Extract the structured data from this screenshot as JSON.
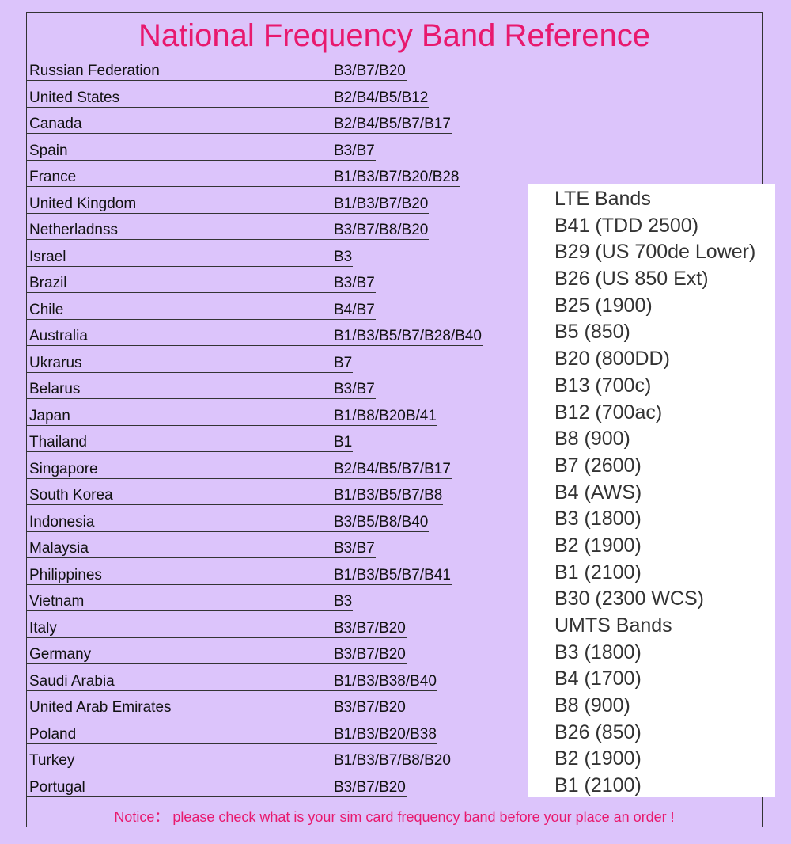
{
  "title": "National Frequency Band Reference",
  "countries": [
    {
      "name": "Russian Federation",
      "bands": "B3/B7/B20"
    },
    {
      "name": "United States",
      "bands": "B2/B4/B5/B12"
    },
    {
      "name": "Canada",
      "bands": "B2/B4/B5/B7/B17"
    },
    {
      "name": "Spain",
      "bands": "B3/B7"
    },
    {
      "name": "France",
      "bands": "B1/B3/B7/B20/B28"
    },
    {
      "name": "United Kingdom",
      "bands": "B1/B3/B7/B20"
    },
    {
      "name": "Netherladnss",
      "bands": "B3/B7/B8/B20"
    },
    {
      "name": "Israel",
      "bands": "B3"
    },
    {
      "name": "Brazil",
      "bands": "B3/B7"
    },
    {
      "name": "Chile",
      "bands": "B4/B7"
    },
    {
      "name": "Australia",
      "bands": "B1/B3/B5/B7/B28/B40"
    },
    {
      "name": "Ukrarus",
      "bands": "B7"
    },
    {
      "name": "Belarus",
      "bands": "B3/B7"
    },
    {
      "name": "Japan",
      "bands": "B1/B8/B20B/41"
    },
    {
      "name": "Thailand",
      "bands": "B1"
    },
    {
      "name": "Singapore",
      "bands": "B2/B4/B5/B7/B17"
    },
    {
      "name": "South Korea",
      "bands": "B1/B3/B5/B7/B8"
    },
    {
      "name": "Indonesia",
      "bands": "B3/B5/B8/B40"
    },
    {
      "name": "Malaysia",
      "bands": "B3/B7"
    },
    {
      "name": "Philippines",
      "bands": "B1/B3/B5/B7/B41"
    },
    {
      "name": "Vietnam",
      "bands": "B3"
    },
    {
      "name": "Italy",
      "bands": "B3/B7/B20"
    },
    {
      "name": "Germany",
      "bands": "B3/B7/B20"
    },
    {
      "name": "Saudi Arabia",
      "bands": "B1/B3/B38/B40"
    },
    {
      "name": "United Arab Emirates",
      "bands": "B3/B7/B20"
    },
    {
      "name": "Poland",
      "bands": "B1/B3/B20/B38"
    },
    {
      "name": "Turkey",
      "bands": "B1/B3/B7/B8/B20"
    },
    {
      "name": "Portugal",
      "bands": "B3/B7/B20"
    }
  ],
  "band_list": [
    "LTE Bands",
    "B41 (TDD 2500)",
    "B29 (US 700de Lower)",
    "B26 (US 850 Ext)",
    "B25 (1900)",
    "B5 (850)",
    "B20 (800DD)",
    "B13 (700c)",
    "B12 (700ac)",
    "B8 (900)",
    "B7 (2600)",
    "B4 (AWS)",
    "B3 (1800)",
    "B2 (1900)",
    "B1 (2100)",
    "B30 (2300 WCS)",
    "UMTS Bands",
    "B3 (1800)",
    "B4 (1700)",
    "B8 (900)",
    "B26 (850)",
    "B2 (1900)",
    "B1 (2100)"
  ],
  "notice": "Notice： please check what is your sim card frequency band before your place an order !",
  "colors": {
    "background": "#dcc4fb",
    "accent": "#e8196e"
  }
}
